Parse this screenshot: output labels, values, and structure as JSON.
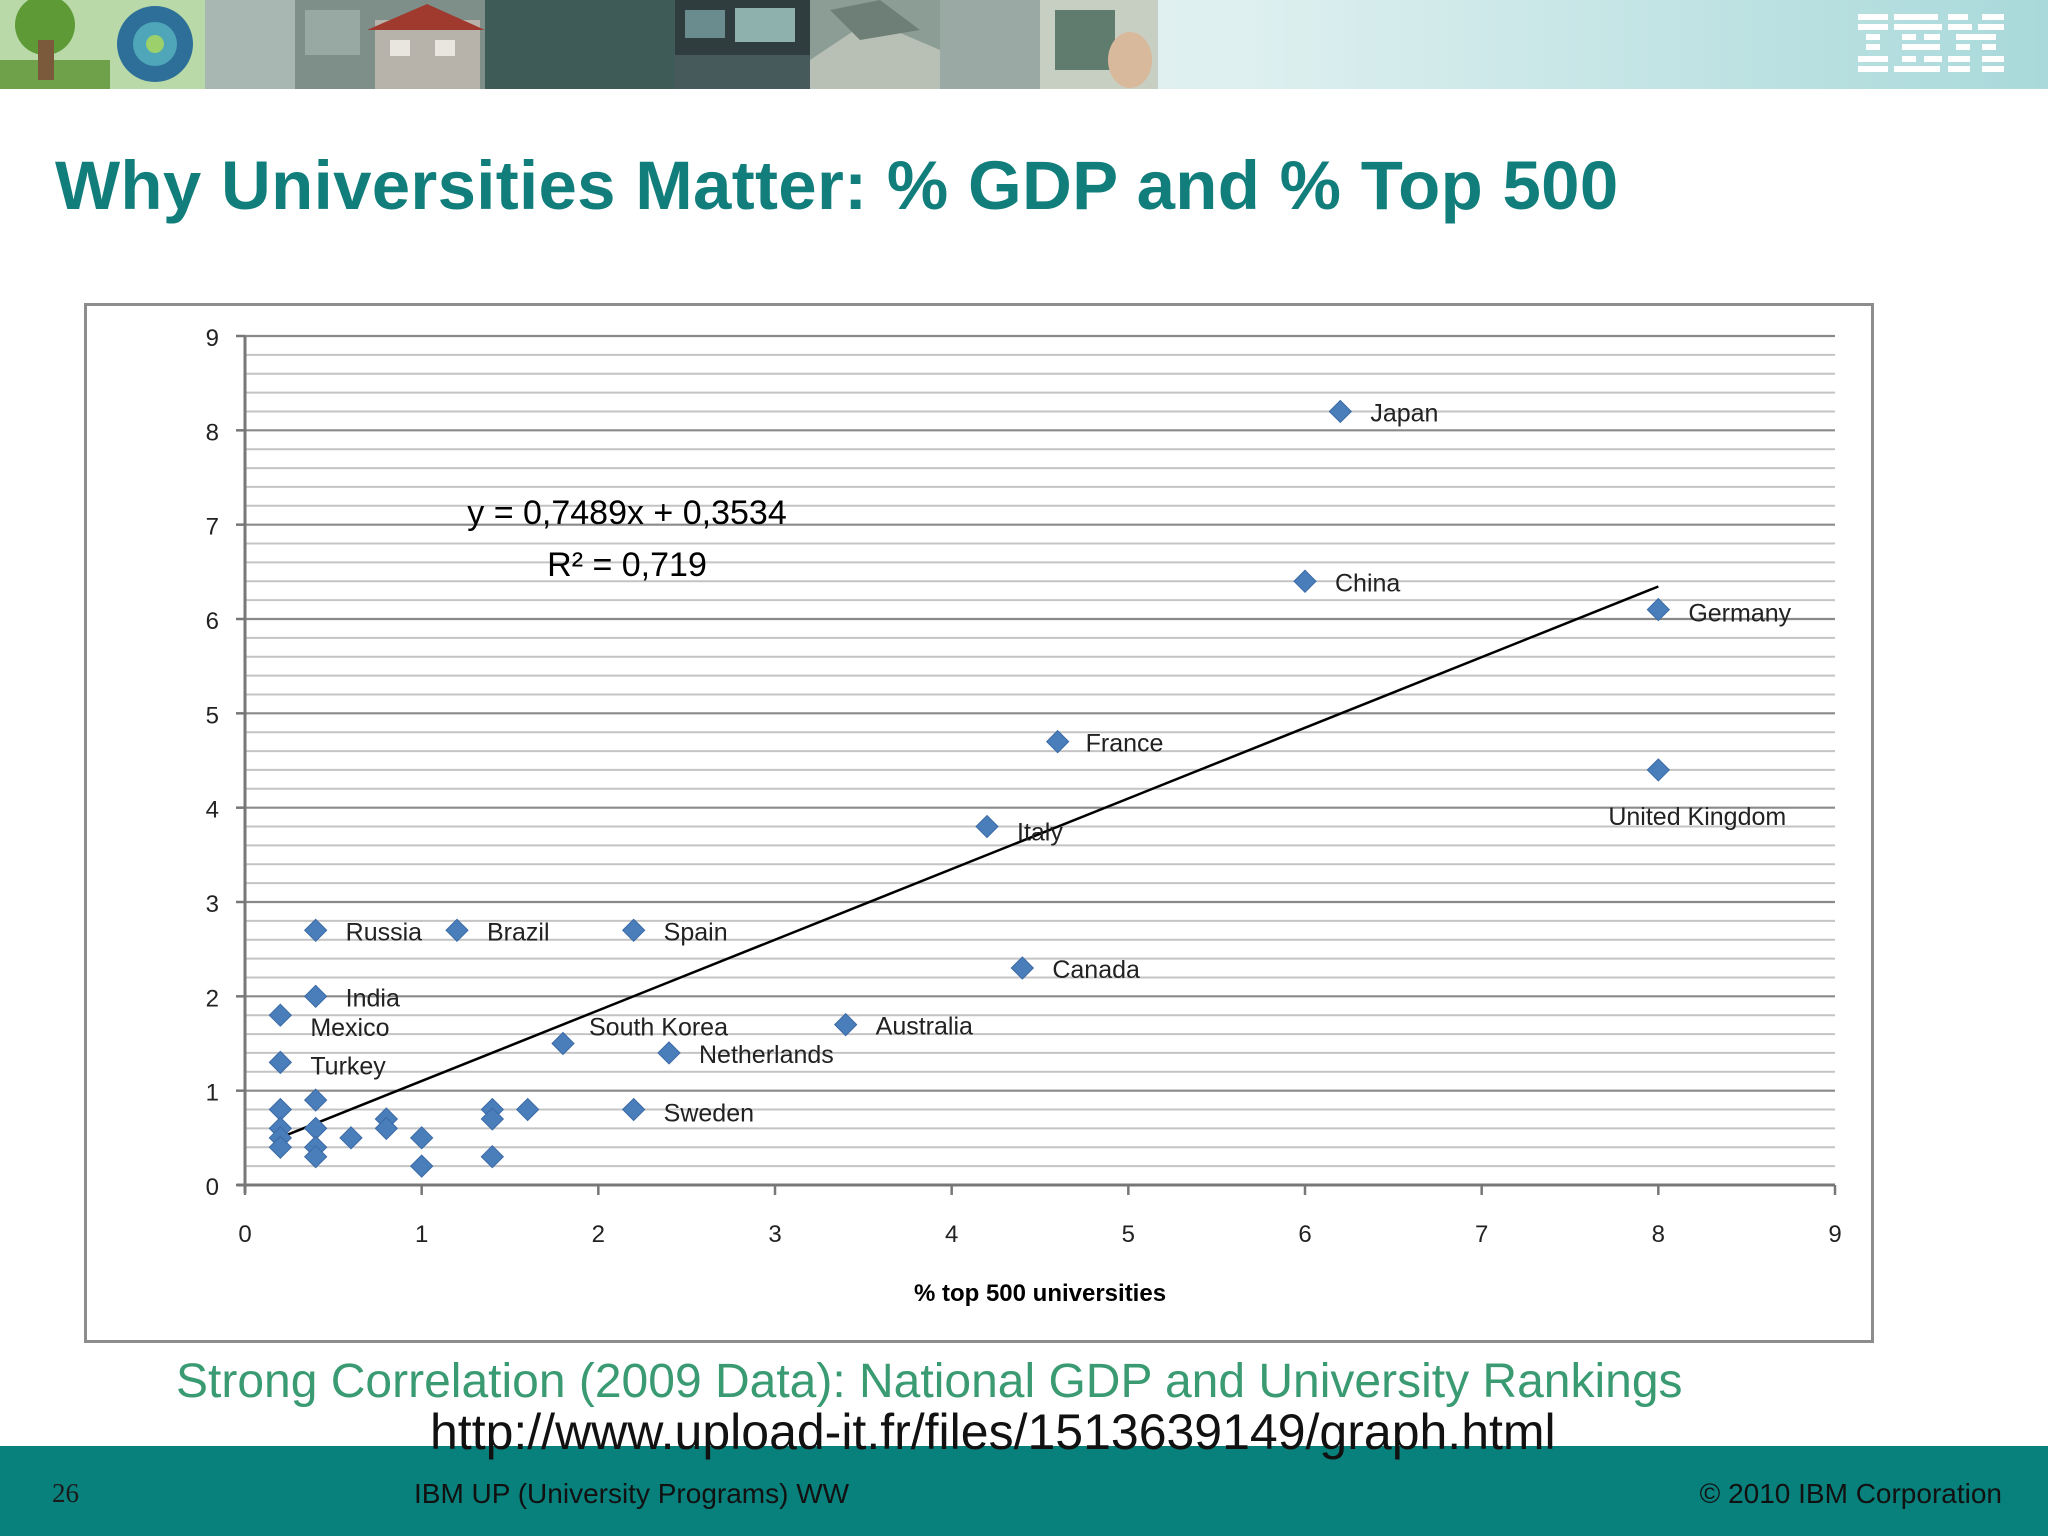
{
  "slide": {
    "title": "Why Universities Matter: % GDP and % Top 500",
    "caption": "Strong Correlation (2009 Data): National GDP and University Rankings",
    "url": "http://www.upload-it.fr/files/1513639149/graph.html",
    "page_number": "26",
    "footer_center": "IBM UP (University Programs) WW",
    "footer_right": "© 2010 IBM Corporation",
    "logo_text": "IBM"
  },
  "colors": {
    "title": "#117e7c",
    "caption": "#3a9b73",
    "footer": "#08807c",
    "marker": "#4a7ebb",
    "trendline": "#000000"
  },
  "chart_data": {
    "type": "scatter",
    "xlabel": "% top 500 universities",
    "ylabel": "",
    "xlim": [
      0,
      9
    ],
    "ylim": [
      0,
      9
    ],
    "x_ticks": [
      "0",
      "1",
      "2",
      "3",
      "4",
      "5",
      "6",
      "7",
      "8",
      "9"
    ],
    "y_ticks": [
      "0",
      "1",
      "2",
      "3",
      "4",
      "5",
      "6",
      "7",
      "8",
      "9"
    ],
    "grid": true,
    "trendline": {
      "equation": "y = 0,7489x + 0,3534",
      "r_squared": "R² = 0,719",
      "slope": 0.7489,
      "intercept": 0.3534,
      "x_range": [
        0.2,
        8.0
      ]
    },
    "points": [
      {
        "x": 6.2,
        "y": 8.2,
        "label": "Japan"
      },
      {
        "x": 6.0,
        "y": 6.4,
        "label": "China"
      },
      {
        "x": 8.0,
        "y": 6.1,
        "label": "Germany"
      },
      {
        "x": 4.6,
        "y": 4.7,
        "label": "France"
      },
      {
        "x": 8.0,
        "y": 4.4,
        "label": "United Kingdom"
      },
      {
        "x": 4.2,
        "y": 3.8,
        "label": "Italy"
      },
      {
        "x": 0.4,
        "y": 2.7,
        "label": "Russia"
      },
      {
        "x": 1.2,
        "y": 2.7,
        "label": "Brazil"
      },
      {
        "x": 2.2,
        "y": 2.7,
        "label": "Spain"
      },
      {
        "x": 4.4,
        "y": 2.3,
        "label": "Canada"
      },
      {
        "x": 0.4,
        "y": 2.0,
        "label": "India"
      },
      {
        "x": 0.2,
        "y": 1.8,
        "label": "Mexico"
      },
      {
        "x": 3.4,
        "y": 1.7,
        "label": "Australia"
      },
      {
        "x": 1.8,
        "y": 1.5,
        "label": "South Korea"
      },
      {
        "x": 2.4,
        "y": 1.4,
        "label": "Netherlands"
      },
      {
        "x": 0.2,
        "y": 1.3,
        "label": "Turkey"
      },
      {
        "x": 2.2,
        "y": 0.8,
        "label": "Sweden"
      },
      {
        "x": 0.2,
        "y": 0.8,
        "label": ""
      },
      {
        "x": 0.4,
        "y": 0.9,
        "label": ""
      },
      {
        "x": 0.2,
        "y": 0.6,
        "label": ""
      },
      {
        "x": 0.2,
        "y": 0.5,
        "label": ""
      },
      {
        "x": 0.2,
        "y": 0.4,
        "label": ""
      },
      {
        "x": 0.4,
        "y": 0.6,
        "label": ""
      },
      {
        "x": 0.4,
        "y": 0.4,
        "label": ""
      },
      {
        "x": 0.4,
        "y": 0.3,
        "label": ""
      },
      {
        "x": 0.6,
        "y": 0.5,
        "label": ""
      },
      {
        "x": 0.8,
        "y": 0.7,
        "label": ""
      },
      {
        "x": 0.8,
        "y": 0.6,
        "label": ""
      },
      {
        "x": 1.0,
        "y": 0.5,
        "label": ""
      },
      {
        "x": 1.0,
        "y": 0.2,
        "label": ""
      },
      {
        "x": 1.4,
        "y": 0.8,
        "label": ""
      },
      {
        "x": 1.4,
        "y": 0.7,
        "label": ""
      },
      {
        "x": 1.6,
        "y": 0.8,
        "label": ""
      },
      {
        "x": 1.4,
        "y": 0.3,
        "label": ""
      }
    ]
  }
}
